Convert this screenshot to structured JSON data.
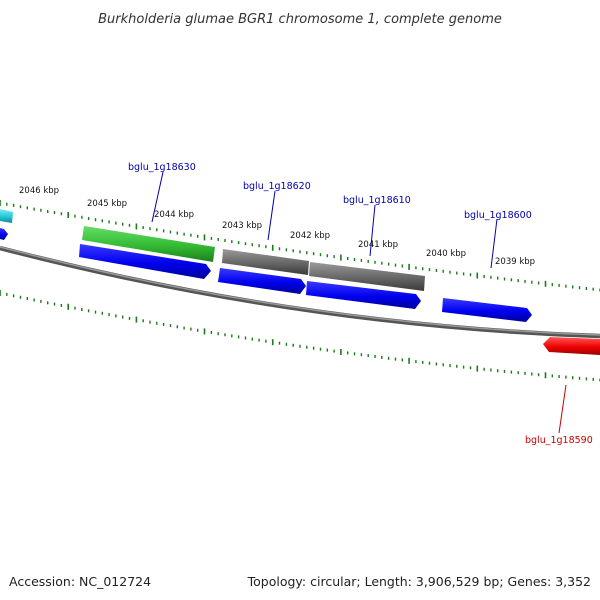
{
  "title": "Burkholderia glumae BGR1 chromosome 1, complete genome",
  "footer": {
    "accession": "Accession: NC_012724",
    "summary": "Topology: circular; Length: 3,906,529 bp; Genes: 3,352"
  },
  "colors": {
    "backbone": "#777777",
    "tick": "#1a7a1a",
    "blue_gene": "#0000ee",
    "green_gene": "#33bb33",
    "gray_gene": "#666666",
    "red_gene": "#ee0000",
    "cyan_gene": "#22c8d8",
    "label_blue": "#0000aa",
    "label_red": "#cc0000"
  },
  "kbp_labels": [
    "2046 kbp",
    "2045 kbp",
    "2044 kbp",
    "2043 kbp",
    "2042 kbp",
    "2041 kbp",
    "2040 kbp",
    "2039 kbp"
  ],
  "gene_labels": [
    {
      "text": "bglu_1g18630",
      "color": "label_blue"
    },
    {
      "text": "bglu_1g18620",
      "color": "label_blue"
    },
    {
      "text": "bglu_1g18610",
      "color": "label_blue"
    },
    {
      "text": "bglu_1g18600",
      "color": "label_blue"
    },
    {
      "text": "bglu_1g18590",
      "color": "label_red"
    }
  ]
}
